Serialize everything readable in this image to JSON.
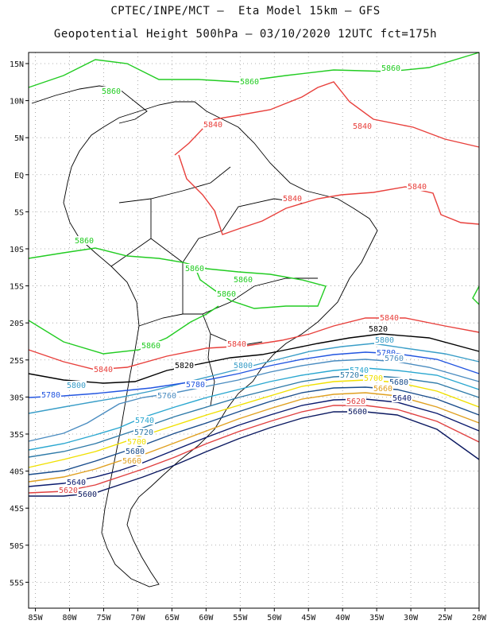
{
  "header": {
    "line1": "CPTEC/INPE/MCT –  Eta Model 15km – GFS",
    "line2": "Geopotential Height 500hPa – 03/10/2020 12UTC fct=175h"
  },
  "axes": {
    "lat_labels": [
      "15N",
      "10N",
      "5N",
      "EQ",
      "5S",
      "10S",
      "15S",
      "20S",
      "25S",
      "30S",
      "35S",
      "40S",
      "45S",
      "50S",
      "55S"
    ],
    "lat_values": [
      15,
      10,
      5,
      0,
      -5,
      -10,
      -15,
      -20,
      -25,
      -30,
      -35,
      -40,
      -45,
      -50,
      -55
    ],
    "lon_labels": [
      "85W",
      "80W",
      "75W",
      "70W",
      "65W",
      "60W",
      "55W",
      "50W",
      "45W",
      "40W",
      "35W",
      "30W",
      "25W",
      "20W"
    ],
    "lon_values": [
      -85,
      -80,
      -75,
      -70,
      -65,
      -60,
      -55,
      -50,
      -45,
      -40,
      -35,
      -30,
      -25,
      -20
    ],
    "lon_range": [
      -86,
      -20
    ],
    "lat_range": [
      -58.5,
      16.5
    ],
    "grid": "dotted"
  },
  "contours": [
    {
      "value": "5860",
      "color": "#22cc22"
    },
    {
      "value": "5840",
      "color": "#e8403c"
    },
    {
      "value": "5820",
      "color": "#000000"
    },
    {
      "value": "5800",
      "color": "#3a9ec8"
    },
    {
      "value": "5780",
      "color": "#2255e0"
    },
    {
      "value": "5760",
      "color": "#4a8cc0"
    },
    {
      "value": "5740",
      "color": "#2aa7d0"
    },
    {
      "value": "5720",
      "color": "#2e7aa8"
    },
    {
      "value": "5700",
      "color": "#f0e000"
    },
    {
      "value": "5680",
      "color": "#1a4d8c"
    },
    {
      "value": "5660",
      "color": "#e0a020"
    },
    {
      "value": "5640",
      "color": "#0a1a6e"
    },
    {
      "value": "5620",
      "color": "#e04040"
    },
    {
      "value": "5600",
      "color": "#0a1860"
    }
  ]
}
